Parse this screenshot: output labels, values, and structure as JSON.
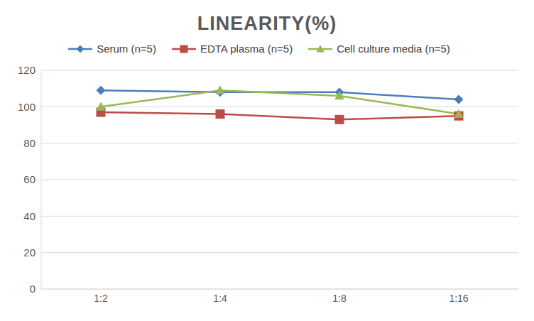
{
  "chart_data": {
    "type": "line",
    "title": "LINEARITY(%)",
    "categories": [
      "1:2",
      "1:4",
      "1:8",
      "1:16"
    ],
    "series": [
      {
        "name": "Serum (n=5)",
        "color": "#4a7ebb",
        "marker": "diamond",
        "values": [
          109,
          108,
          108,
          104
        ]
      },
      {
        "name": "EDTA plasma (n=5)",
        "color": "#be4b48",
        "marker": "square",
        "values": [
          97,
          96,
          93,
          95
        ]
      },
      {
        "name": "Cell culture media (n=5)",
        "color": "#98b954",
        "marker": "triangle",
        "values": [
          100,
          109,
          106,
          96
        ]
      }
    ],
    "ylim": [
      0,
      120
    ],
    "yticks": [
      0,
      20,
      40,
      60,
      80,
      100,
      120
    ],
    "grid": true,
    "legend": "top"
  }
}
